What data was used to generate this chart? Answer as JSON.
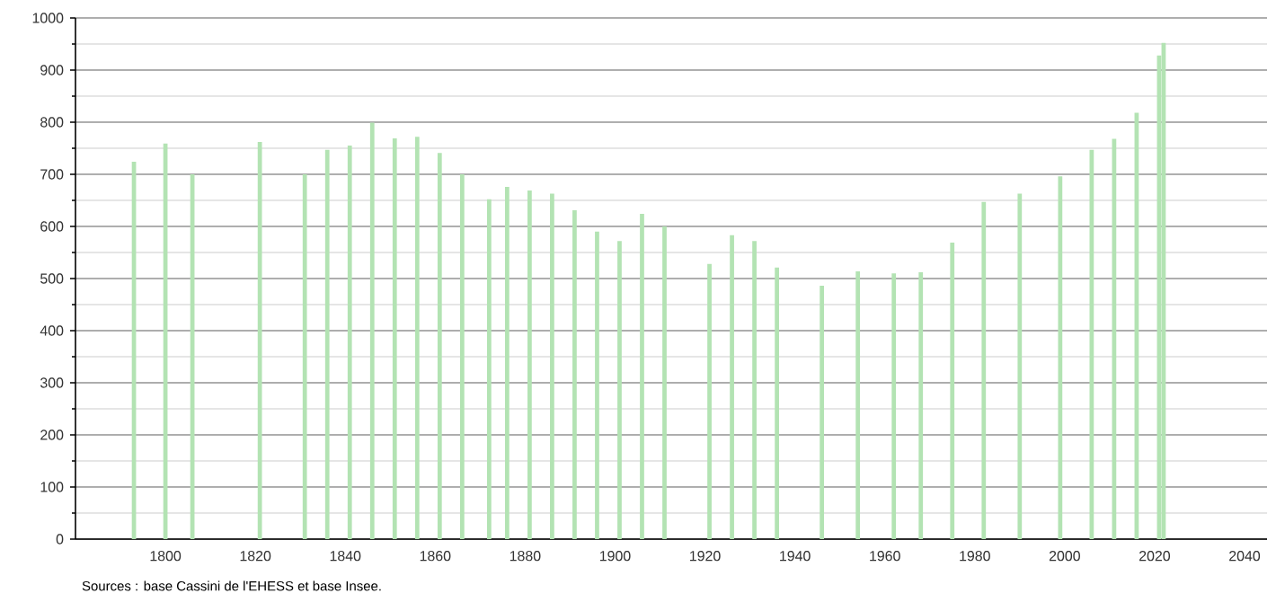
{
  "chart_data": {
    "type": "bar",
    "x": [
      1793,
      1800,
      1806,
      1821,
      1831,
      1836,
      1841,
      1846,
      1851,
      1856,
      1861,
      1866,
      1872,
      1876,
      1881,
      1886,
      1891,
      1896,
      1901,
      1906,
      1911,
      1921,
      1926,
      1931,
      1936,
      1946,
      1954,
      1962,
      1968,
      1975,
      1982,
      1990,
      1999,
      2006,
      2011,
      2016,
      2021,
      2022
    ],
    "values": [
      724,
      759,
      700,
      762,
      700,
      747,
      755,
      799,
      769,
      772,
      741,
      700,
      652,
      676,
      669,
      663,
      631,
      590,
      572,
      624,
      600,
      528,
      583,
      572,
      521,
      486,
      514,
      510,
      512,
      569,
      647,
      663,
      696,
      747,
      768,
      818,
      928,
      952
    ],
    "color": "#b3e3b3",
    "xlim": [
      1780,
      2045
    ],
    "xticks": [
      1800,
      1820,
      1840,
      1860,
      1880,
      1900,
      1920,
      1940,
      1960,
      1980,
      2000,
      2020,
      2040
    ],
    "ylim": [
      0,
      1000
    ],
    "yticks": [
      0,
      {
        "value": 50,
        "label": null
      },
      100,
      {
        "value": 150,
        "label": null
      },
      200,
      {
        "value": 250,
        "label": null
      },
      300,
      {
        "value": 350,
        "label": null
      },
      400,
      {
        "value": 450,
        "label": null
      },
      500,
      {
        "value": 550,
        "label": null
      },
      600,
      {
        "value": 650,
        "label": null
      },
      700,
      {
        "value": 750,
        "label": null
      },
      800,
      {
        "value": 850,
        "label": null
      },
      900,
      {
        "value": 950,
        "label": null
      },
      1000
    ],
    "grid": "y",
    "annotations": [
      "Sources : base Cassini de l'EHESS et base Insee."
    ]
  }
}
